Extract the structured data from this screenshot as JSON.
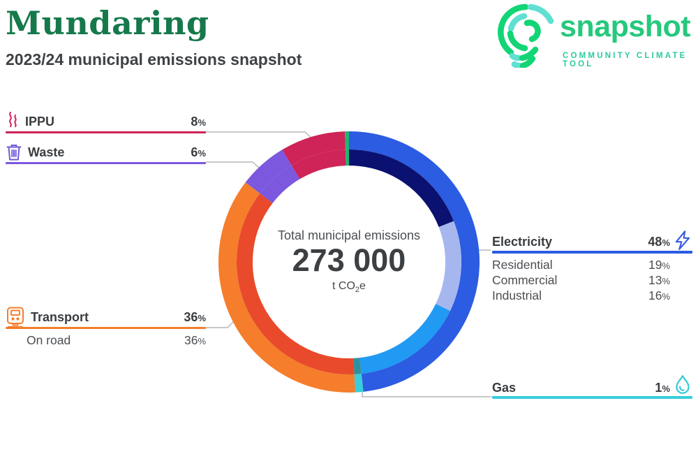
{
  "header": {
    "title": "Mundaring",
    "subtitle": "2023/24 municipal emissions snapshot"
  },
  "logo": {
    "name": "snapshot",
    "tagline": "COMMUNITY CLIMATE TOOL",
    "brand_green": "#25c97c",
    "brand_teal": "#5fe0d2"
  },
  "percent_sign": "%",
  "center": {
    "label": "Total municipal emissions",
    "value": "273 000",
    "unit_main": "t CO",
    "unit_sub": "2",
    "unit_end": "e"
  },
  "categories": {
    "ippu": {
      "label": "IPPU",
      "pct": "8",
      "color": "#ce2457"
    },
    "waste": {
      "label": "Waste",
      "pct": "6",
      "color": "#7b58dd"
    },
    "transport": {
      "label": "Transport",
      "pct": "36",
      "color": "#f57d2b",
      "sub": {
        "label": "On road",
        "pct": "36"
      }
    },
    "electricity": {
      "label": "Electricity",
      "pct": "48",
      "color": "#2b5ce1",
      "rows": [
        {
          "label": "Residential",
          "pct": "19"
        },
        {
          "label": "Commercial",
          "pct": "13"
        },
        {
          "label": "Industrial",
          "pct": "16"
        }
      ]
    },
    "gas": {
      "label": "Gas",
      "pct": "1",
      "color": "#38cdda"
    }
  },
  "chart_data": {
    "type": "donut",
    "title": "Total municipal emissions",
    "total_label": "273 000",
    "units": "t CO2e",
    "start": "top",
    "direction": "clockwise",
    "segments": [
      {
        "label": "Electricity",
        "pct": 48,
        "color": "#2b5ce1",
        "subsegments": [
          {
            "label": "Residential",
            "pct": 19,
            "color": "#0a1170"
          },
          {
            "label": "Commercial",
            "pct": 13,
            "color": "#a6b7f0"
          },
          {
            "label": "Industrial",
            "pct": 16,
            "color": "#219af3"
          }
        ]
      },
      {
        "label": "Gas",
        "pct": 1,
        "color": "#38cdda",
        "inner_color": "#2f919e"
      },
      {
        "label": "Transport",
        "pct": 36,
        "color": "#f57d2b",
        "subsegments": [
          {
            "label": "On road",
            "pct": 36,
            "color": "#e84a2b"
          }
        ]
      },
      {
        "label": "Waste",
        "pct": 6,
        "color": "#7b58dd"
      },
      {
        "label": "IPPU",
        "pct": 8,
        "color": "#ce2457"
      },
      {
        "label": "",
        "pct": 0.5,
        "color": "#21b573"
      }
    ]
  }
}
